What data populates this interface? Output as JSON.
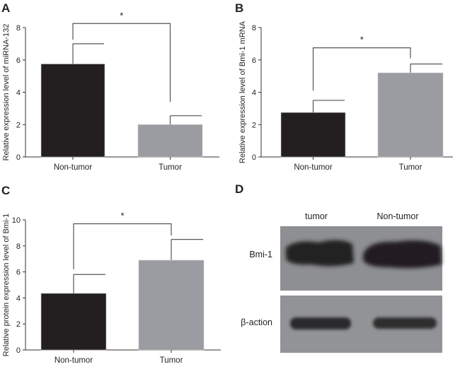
{
  "chart_data": [
    {
      "panel": "A",
      "type": "bar",
      "categories": [
        "Non-tumor",
        "Tumor"
      ],
      "values": [
        5.75,
        2.0
      ],
      "error": [
        1.25,
        0.55
      ],
      "colors": [
        "#231f20",
        "#9a9ca1"
      ],
      "ylabel": "Relative expression level of miRNA-132",
      "xlabel": "",
      "ylim": [
        0,
        8
      ],
      "yticks": [
        0,
        2,
        4,
        6,
        8
      ],
      "significance": {
        "label": "*",
        "level": 8.25,
        "drop": [
          7.25,
          3.4
        ]
      }
    },
    {
      "panel": "B",
      "type": "bar",
      "categories": [
        "Non-tumor",
        "Tumor"
      ],
      "values": [
        2.75,
        5.2
      ],
      "error": [
        0.75,
        0.55
      ],
      "colors": [
        "#231f20",
        "#9a9ca1"
      ],
      "ylabel": "Relative expression level of Bmi-1 mRNA",
      "xlabel": "",
      "ylim": [
        0,
        8
      ],
      "yticks": [
        0,
        2,
        4,
        6,
        8
      ],
      "significance": {
        "label": "*",
        "level": 6.75,
        "drop": [
          4.1,
          6.1
        ]
      }
    },
    {
      "panel": "C",
      "type": "bar",
      "categories": [
        "Non-tumor",
        "Tumor"
      ],
      "values": [
        4.35,
        6.9
      ],
      "error": [
        1.45,
        1.6
      ],
      "colors": [
        "#231f20",
        "#9a9ca1"
      ],
      "ylabel": "Relative protein expression level of Bmi-1",
      "xlabel": "",
      "ylim": [
        0,
        10
      ],
      "yticks": [
        0,
        2,
        4,
        6,
        8,
        10
      ],
      "significance": {
        "label": "*",
        "level": 9.7,
        "drop": [
          6.2,
          8.8
        ]
      }
    }
  ],
  "blot": {
    "panel": "D",
    "lanes": [
      "tumor",
      "Non-tumor"
    ],
    "rows": [
      "Bmi-1",
      "β-action"
    ]
  }
}
